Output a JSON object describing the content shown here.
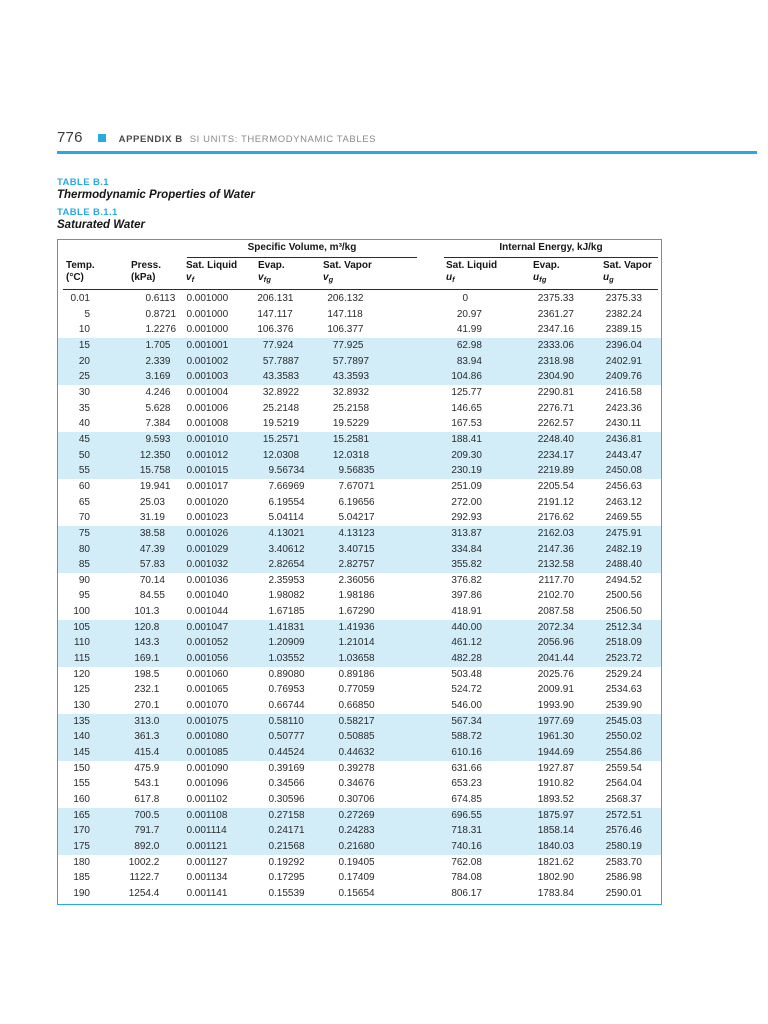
{
  "page": {
    "number": "776",
    "header": {
      "appendix": "APPENDIX B",
      "subtitle": "SI UNITS: THERMODYNAMIC TABLES"
    },
    "accent_color": "#2aa9e0",
    "band_color": "#d2ecf8"
  },
  "titles": {
    "table_b1_label": "TABLE B.1",
    "table_b1_title": "Thermodynamic Properties of Water",
    "table_b11_label": "TABLE B.1.1",
    "table_b11_title": "Saturated Water"
  },
  "table": {
    "group_headers": [
      {
        "label": "Specific Volume, m³/kg"
      },
      {
        "label": "Internal Energy, kJ/kg"
      }
    ],
    "columns": [
      {
        "line1": "Temp.",
        "line2": "(°C)"
      },
      {
        "line1": "Press.",
        "line2": "(kPa)"
      },
      {
        "line1": "Sat. Liquid",
        "sym": "v",
        "sub": "f"
      },
      {
        "line1": "Evap.",
        "sym": "v",
        "sub": "fg"
      },
      {
        "line1": "Sat. Vapor",
        "sym": "v",
        "sub": "g"
      },
      {
        "line1": "Sat. Liquid",
        "sym": "u",
        "sub": "f"
      },
      {
        "line1": "Evap.",
        "sym": "u",
        "sub": "fg"
      },
      {
        "line1": "Sat. Vapor",
        "sym": "u",
        "sub": "g"
      }
    ],
    "rows": [
      [
        "0.01",
        "0.6113",
        "0.001000",
        "206.131",
        "206.132",
        "0",
        "2375.33",
        "2375.33"
      ],
      [
        "5",
        "0.8721",
        "0.001000",
        "147.117",
        "147.118",
        "20.97",
        "2361.27",
        "2382.24"
      ],
      [
        "10",
        "1.2276",
        "0.001000",
        "106.376",
        "106.377",
        "41.99",
        "2347.16",
        "2389.15"
      ],
      [
        "15",
        "1.705",
        "0.001001",
        "77.924",
        "77.925",
        "62.98",
        "2333.06",
        "2396.04"
      ],
      [
        "20",
        "2.339",
        "0.001002",
        "57.7887",
        "57.7897",
        "83.94",
        "2318.98",
        "2402.91"
      ],
      [
        "25",
        "3.169",
        "0.001003",
        "43.3583",
        "43.3593",
        "104.86",
        "2304.90",
        "2409.76"
      ],
      [
        "30",
        "4.246",
        "0.001004",
        "32.8922",
        "32.8932",
        "125.77",
        "2290.81",
        "2416.58"
      ],
      [
        "35",
        "5.628",
        "0.001006",
        "25.2148",
        "25.2158",
        "146.65",
        "2276.71",
        "2423.36"
      ],
      [
        "40",
        "7.384",
        "0.001008",
        "19.5219",
        "19.5229",
        "167.53",
        "2262.57",
        "2430.11"
      ],
      [
        "45",
        "9.593",
        "0.001010",
        "15.2571",
        "15.2581",
        "188.41",
        "2248.40",
        "2436.81"
      ],
      [
        "50",
        "12.350",
        "0.001012",
        "12.0308",
        "12.0318",
        "209.30",
        "2234.17",
        "2443.47"
      ],
      [
        "55",
        "15.758",
        "0.001015",
        "9.56734",
        "9.56835",
        "230.19",
        "2219.89",
        "2450.08"
      ],
      [
        "60",
        "19.941",
        "0.001017",
        "7.66969",
        "7.67071",
        "251.09",
        "2205.54",
        "2456.63"
      ],
      [
        "65",
        "25.03",
        "0.001020",
        "6.19554",
        "6.19656",
        "272.00",
        "2191.12",
        "2463.12"
      ],
      [
        "70",
        "31.19",
        "0.001023",
        "5.04114",
        "5.04217",
        "292.93",
        "2176.62",
        "2469.55"
      ],
      [
        "75",
        "38.58",
        "0.001026",
        "4.13021",
        "4.13123",
        "313.87",
        "2162.03",
        "2475.91"
      ],
      [
        "80",
        "47.39",
        "0.001029",
        "3.40612",
        "3.40715",
        "334.84",
        "2147.36",
        "2482.19"
      ],
      [
        "85",
        "57.83",
        "0.001032",
        "2.82654",
        "2.82757",
        "355.82",
        "2132.58",
        "2488.40"
      ],
      [
        "90",
        "70.14",
        "0.001036",
        "2.35953",
        "2.36056",
        "376.82",
        "2117.70",
        "2494.52"
      ],
      [
        "95",
        "84.55",
        "0.001040",
        "1.98082",
        "1.98186",
        "397.86",
        "2102.70",
        "2500.56"
      ],
      [
        "100",
        "101.3",
        "0.001044",
        "1.67185",
        "1.67290",
        "418.91",
        "2087.58",
        "2506.50"
      ],
      [
        "105",
        "120.8",
        "0.001047",
        "1.41831",
        "1.41936",
        "440.00",
        "2072.34",
        "2512.34"
      ],
      [
        "110",
        "143.3",
        "0.001052",
        "1.20909",
        "1.21014",
        "461.12",
        "2056.96",
        "2518.09"
      ],
      [
        "115",
        "169.1",
        "0.001056",
        "1.03552",
        "1.03658",
        "482.28",
        "2041.44",
        "2523.72"
      ],
      [
        "120",
        "198.5",
        "0.001060",
        "0.89080",
        "0.89186",
        "503.48",
        "2025.76",
        "2529.24"
      ],
      [
        "125",
        "232.1",
        "0.001065",
        "0.76953",
        "0.77059",
        "524.72",
        "2009.91",
        "2534.63"
      ],
      [
        "130",
        "270.1",
        "0.001070",
        "0.66744",
        "0.66850",
        "546.00",
        "1993.90",
        "2539.90"
      ],
      [
        "135",
        "313.0",
        "0.001075",
        "0.58110",
        "0.58217",
        "567.34",
        "1977.69",
        "2545.03"
      ],
      [
        "140",
        "361.3",
        "0.001080",
        "0.50777",
        "0.50885",
        "588.72",
        "1961.30",
        "2550.02"
      ],
      [
        "145",
        "415.4",
        "0.001085",
        "0.44524",
        "0.44632",
        "610.16",
        "1944.69",
        "2554.86"
      ],
      [
        "150",
        "475.9",
        "0.001090",
        "0.39169",
        "0.39278",
        "631.66",
        "1927.87",
        "2559.54"
      ],
      [
        "155",
        "543.1",
        "0.001096",
        "0.34566",
        "0.34676",
        "653.23",
        "1910.82",
        "2564.04"
      ],
      [
        "160",
        "617.8",
        "0.001102",
        "0.30596",
        "0.30706",
        "674.85",
        "1893.52",
        "2568.37"
      ],
      [
        "165",
        "700.5",
        "0.001108",
        "0.27158",
        "0.27269",
        "696.55",
        "1875.97",
        "2572.51"
      ],
      [
        "170",
        "791.7",
        "0.001114",
        "0.24171",
        "0.24283",
        "718.31",
        "1858.14",
        "2576.46"
      ],
      [
        "175",
        "892.0",
        "0.001121",
        "0.21568",
        "0.21680",
        "740.16",
        "1840.03",
        "2580.19"
      ],
      [
        "180",
        "1002.2",
        "0.001127",
        "0.19292",
        "0.19405",
        "762.08",
        "1821.62",
        "2583.70"
      ],
      [
        "185",
        "1122.7",
        "0.001134",
        "0.17295",
        "0.17409",
        "784.08",
        "1802.90",
        "2586.98"
      ],
      [
        "190",
        "1254.4",
        "0.001141",
        "0.15539",
        "0.15654",
        "806.17",
        "1783.84",
        "2590.01"
      ]
    ]
  }
}
